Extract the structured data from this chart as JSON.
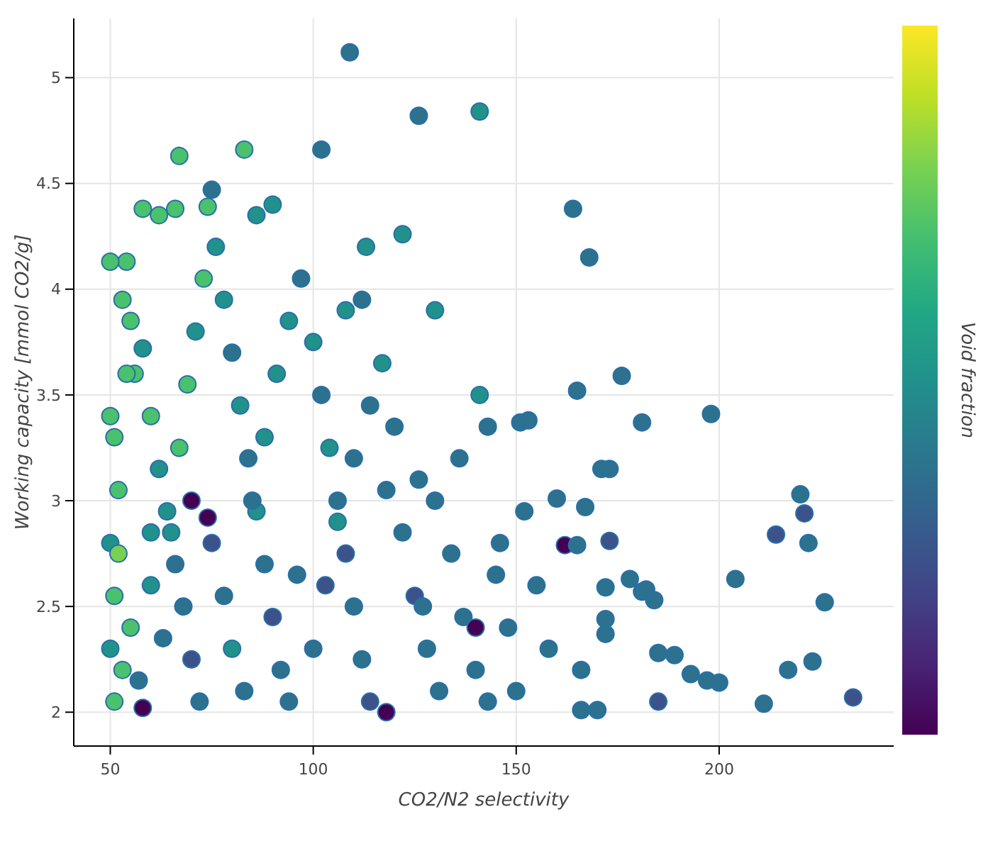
{
  "chart_data": {
    "type": "scatter",
    "xlabel": "CO2/N2 selectivity",
    "ylabel": "Working capacity [mmol CO2/g]",
    "clabel": "Void fraction",
    "xlim": [
      41,
      243
    ],
    "ylim": [
      1.84,
      5.28
    ],
    "xticks": [
      50,
      100,
      150,
      200
    ],
    "yticks": [
      2,
      2.5,
      3,
      3.5,
      4,
      4.5,
      5
    ],
    "grid": true,
    "marker": "circle",
    "series": [
      {
        "x": [
          109,
          126,
          141,
          67,
          83,
          102,
          164,
          168,
          176,
          198,
          181,
          165,
          151,
          220,
          221,
          222,
          214,
          204,
          226,
          233,
          211,
          217,
          223,
          200,
          197,
          193,
          189,
          185,
          185,
          184,
          181,
          182,
          178,
          173,
          171,
          173,
          172,
          172,
          172,
          170,
          166,
          166,
          162,
          165,
          160,
          167,
          153,
          143,
          141,
          130,
          122,
          113,
          112,
          108,
          90,
          86,
          75,
          58,
          62,
          66,
          54,
          50,
          74,
          50,
          51,
          52,
          50,
          51,
          50,
          51,
          52,
          53,
          55,
          56,
          58,
          60,
          62,
          64,
          66,
          68,
          70,
          72,
          55,
          57,
          58,
          60,
          63,
          65,
          67,
          69,
          71,
          73,
          76,
          78,
          80,
          82,
          84,
          86,
          88,
          90,
          92,
          94,
          75,
          78,
          80,
          83,
          85,
          88,
          91,
          94,
          97,
          100,
          102,
          104,
          106,
          108,
          110,
          112,
          114,
          100,
          103,
          106,
          110,
          114,
          117,
          120,
          118,
          122,
          125,
          128,
          131,
          126,
          130,
          134,
          137,
          140,
          143,
          136,
          145,
          148,
          150,
          146,
          155,
          158,
          152,
          127,
          140,
          118,
          96,
          74,
          70,
          60,
          54,
          53
        ],
        "values": [
          5.12,
          4.82,
          4.84,
          4.63,
          4.66,
          4.66,
          4.38,
          4.15,
          3.59,
          3.41,
          3.37,
          3.52,
          3.37,
          3.03,
          2.94,
          2.8,
          2.84,
          2.63,
          2.52,
          2.07,
          2.04,
          2.2,
          2.24,
          2.14,
          2.15,
          2.18,
          2.27,
          2.28,
          2.05,
          2.53,
          2.57,
          2.58,
          2.63,
          2.81,
          3.15,
          3.15,
          2.59,
          2.37,
          2.44,
          2.01,
          2.01,
          2.2,
          2.79,
          2.79,
          3.01,
          2.97,
          3.38,
          3.35,
          3.5,
          3.9,
          4.26,
          4.2,
          3.95,
          3.9,
          4.4,
          4.35,
          4.47,
          4.38,
          4.35,
          4.38,
          4.13,
          4.13,
          4.39,
          3.4,
          3.3,
          3.05,
          2.8,
          2.55,
          2.3,
          2.05,
          2.75,
          3.95,
          3.85,
          3.6,
          3.72,
          3.4,
          3.15,
          2.95,
          2.7,
          2.5,
          2.25,
          2.05,
          2.4,
          2.15,
          2.02,
          2.6,
          2.35,
          2.85,
          3.25,
          3.55,
          3.8,
          4.05,
          4.2,
          3.95,
          3.7,
          3.45,
          3.2,
          2.95,
          2.7,
          2.45,
          2.2,
          2.05,
          2.8,
          2.55,
          2.3,
          2.1,
          3,
          3.3,
          3.6,
          3.85,
          4.05,
          3.75,
          3.5,
          3.25,
          3,
          2.75,
          2.5,
          2.25,
          2.05,
          2.3,
          2.6,
          2.9,
          3.2,
          3.45,
          3.65,
          3.35,
          3.05,
          2.85,
          2.55,
          2.3,
          2.1,
          3.1,
          3,
          2.75,
          2.45,
          2.2,
          2.05,
          3.2,
          2.65,
          2.4,
          2.1,
          2.8,
          2.6,
          2.3,
          2.95,
          2.5,
          2.4,
          2,
          2.65,
          2.92,
          3,
          2.85,
          3.6,
          2.2
        ],
        "colors": [
          "#2c728e",
          "#2c728e",
          "#21918c",
          "#4ac16d",
          "#4ac16d",
          "#2c728e",
          "#2c728e",
          "#2c728e",
          "#2c728e",
          "#2c728e",
          "#2c728e",
          "#2c728e",
          "#2c728e",
          "#2c728e",
          "#3b528b",
          "#2c728e",
          "#3b528b",
          "#2c728e",
          "#2c728e",
          "#3b528b",
          "#2c728e",
          "#2c728e",
          "#2c728e",
          "#2c728e",
          "#2c728e",
          "#2c728e",
          "#2c728e",
          "#2c728e",
          "#3b528b",
          "#2c728e",
          "#2c728e",
          "#2c728e",
          "#2c728e",
          "#3b528b",
          "#2c728e",
          "#2c728e",
          "#2c728e",
          "#2c728e",
          "#2c728e",
          "#2c728e",
          "#2c728e",
          "#2c728e",
          "#440154",
          "#2c728e",
          "#2c728e",
          "#2c728e",
          "#2c728e",
          "#2c728e",
          "#21918c",
          "#21918c",
          "#21918c",
          "#21918c",
          "#2c728e",
          "#21918c",
          "#21918c",
          "#21918c",
          "#2c728e",
          "#4ac16d",
          "#4ac16d",
          "#4ac16d",
          "#4ac16d",
          "#4ac16d",
          "#4ac16d",
          "#4ac16d",
          "#4ac16d",
          "#4ac16d",
          "#21918c",
          "#4ac16d",
          "#21918c",
          "#4ac16d",
          "#7ad151",
          "#4ac16d",
          "#4ac16d",
          "#4ac16d",
          "#21918c",
          "#4ac16d",
          "#21918c",
          "#21918c",
          "#2c728e",
          "#2c728e",
          "#3b528b",
          "#2c728e",
          "#4ac16d",
          "#2c728e",
          "#440154",
          "#21918c",
          "#2c728e",
          "#21918c",
          "#4ac16d",
          "#4ac16d",
          "#21918c",
          "#4ac16d",
          "#21918c",
          "#21918c",
          "#2c728e",
          "#21918c",
          "#2c728e",
          "#21918c",
          "#2c728e",
          "#3b528b",
          "#2c728e",
          "#2c728e",
          "#3b528b",
          "#2c728e",
          "#21918c",
          "#2c728e",
          "#2c728e",
          "#21918c",
          "#21918c",
          "#21918c",
          "#2c728e",
          "#21918c",
          "#2c728e",
          "#21918c",
          "#2c728e",
          "#3b528b",
          "#2c728e",
          "#2c728e",
          "#3b528b",
          "#2c728e",
          "#3b528b",
          "#21918c",
          "#2c728e",
          "#2c728e",
          "#21918c",
          "#2c728e",
          "#2c728e",
          "#2c728e",
          "#3b528b",
          "#2c728e",
          "#2c728e",
          "#2c728e",
          "#2c728e",
          "#2c728e",
          "#2c728e",
          "#2c728e",
          "#2c728e",
          "#2c728e",
          "#2c728e",
          "#2c728e",
          "#2c728e",
          "#2c728e",
          "#2c728e",
          "#2c728e",
          "#2c728e",
          "#2c728e",
          "#440154",
          "#440154",
          "#2c728e",
          "#440154",
          "#440154",
          "#21918c",
          "#4ac16d",
          "#4ac16d"
        ]
      }
    ]
  }
}
